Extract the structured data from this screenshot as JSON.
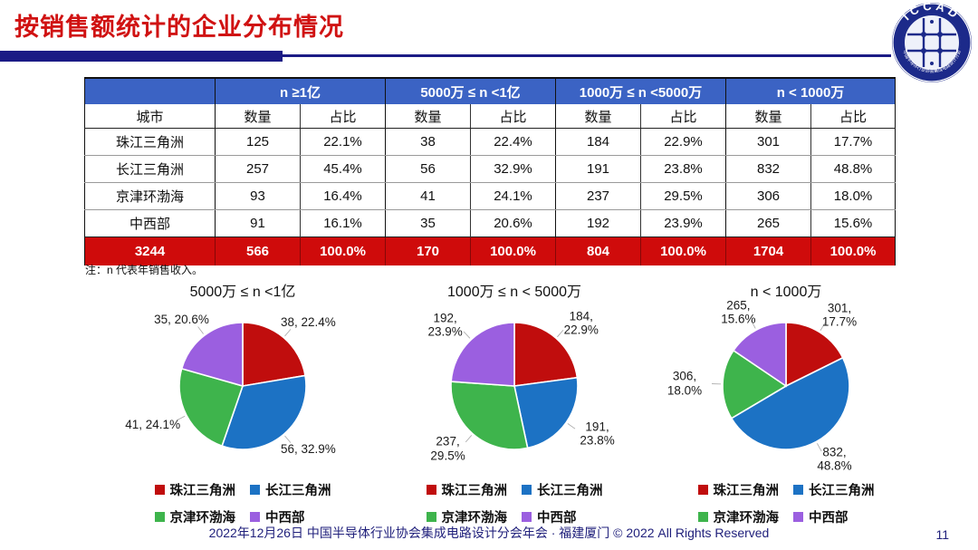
{
  "page": {
    "title": "按销售额统计的企业分布情况",
    "note": "注：n 代表年销售收入。",
    "footer": "2022年12月26日 中国半导体行业协会集成电路设计分会年会 · 福建厦门 © 2022 All Rights Reserved",
    "page_number": "11",
    "logo": {
      "text": "ICCAD",
      "ring_text": "中国半导体行业协会集成电路设计分会"
    }
  },
  "colors": {
    "title_red": "#d01212",
    "rule_navy": "#1b1b85",
    "header_blue": "#3b63c4",
    "total_red": "#cf0b0b",
    "footer_navy": "#21217c"
  },
  "chart_colors": [
    "#c00d0d",
    "#1c72c4",
    "#3eb44c",
    "#9b5fe0"
  ],
  "legend": {
    "items": [
      "珠江三角洲",
      "长江三角洲",
      "京津环渤海",
      "中西部"
    ]
  },
  "table": {
    "group_headers": [
      "n ≥1亿",
      "5000万 ≤ n <1亿",
      "1000万 ≤ n <5000万",
      "n < 1000万"
    ],
    "sub_headers": {
      "city": "城市",
      "count": "数量",
      "share": "占比"
    },
    "rows": [
      {
        "city": "珠江三角洲",
        "cells": [
          "125",
          "22.1%",
          "38",
          "22.4%",
          "184",
          "22.9%",
          "301",
          "17.7%"
        ]
      },
      {
        "city": "长江三角洲",
        "cells": [
          "257",
          "45.4%",
          "56",
          "32.9%",
          "191",
          "23.8%",
          "832",
          "48.8%"
        ]
      },
      {
        "city": "京津环渤海",
        "cells": [
          "93",
          "16.4%",
          "41",
          "24.1%",
          "237",
          "29.5%",
          "306",
          "18.0%"
        ]
      },
      {
        "city": "中西部",
        "cells": [
          "91",
          "16.1%",
          "35",
          "20.6%",
          "192",
          "23.9%",
          "265",
          "15.6%"
        ]
      }
    ],
    "total_row": {
      "city": "3244",
      "cells": [
        "566",
        "100.0%",
        "170",
        "100.0%",
        "804",
        "100.0%",
        "1704",
        "100.0%"
      ]
    }
  },
  "chart_data": [
    {
      "type": "pie",
      "title": "5000万 ≤ n <1亿",
      "categories": [
        "珠江三角洲",
        "长江三角洲",
        "京津环渤海",
        "中西部"
      ],
      "values": [
        38,
        56,
        41,
        35
      ],
      "percentages": [
        22.4,
        32.9,
        24.1,
        20.6
      ],
      "labels": [
        "38, 22.4%",
        "56, 32.9%",
        "41, 24.1%",
        "35, 20.6%"
      ],
      "start_angle_deg": 0,
      "direction": "clockwise",
      "legend_position": "bottom"
    },
    {
      "type": "pie",
      "title": "1000万 ≤ n < 5000万",
      "categories": [
        "珠江三角洲",
        "长江三角洲",
        "京津环渤海",
        "中西部"
      ],
      "values": [
        184,
        191,
        237,
        192
      ],
      "percentages": [
        22.9,
        23.8,
        29.5,
        23.9
      ],
      "labels": [
        "184,\n22.9%",
        "191,\n23.8%",
        "237,\n29.5%",
        "192,\n23.9%"
      ],
      "start_angle_deg": 0,
      "direction": "clockwise",
      "legend_position": "bottom"
    },
    {
      "type": "pie",
      "title": "n < 1000万",
      "categories": [
        "珠江三角洲",
        "长江三角洲",
        "京津环渤海",
        "中西部"
      ],
      "values": [
        301,
        832,
        306,
        265
      ],
      "percentages": [
        17.7,
        48.8,
        18.0,
        15.6
      ],
      "labels": [
        "301,\n17.7%",
        "832,\n48.8%",
        "306,\n18.0%",
        "265,\n15.6%"
      ],
      "start_angle_deg": 0,
      "direction": "clockwise",
      "legend_position": "bottom"
    }
  ]
}
